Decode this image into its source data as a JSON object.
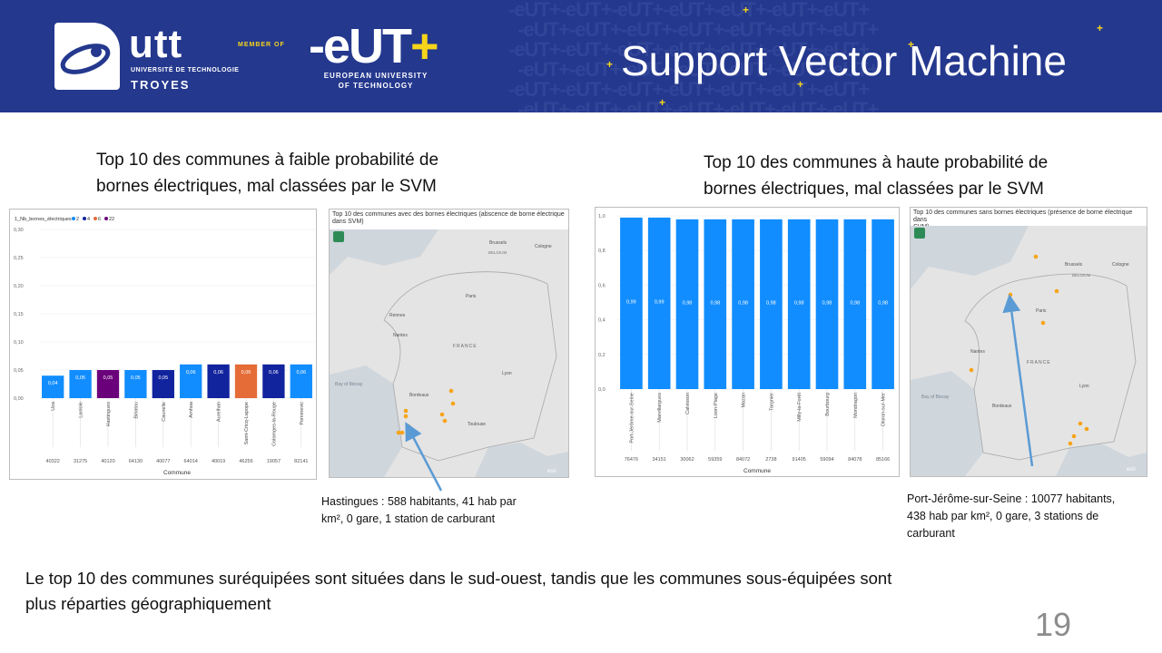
{
  "header": {
    "title": "Support Vector Machine",
    "utt": "utt",
    "utt_sub": "UNIVERSITÉ DE TECHNOLOGIE",
    "utt_city": "TROYES",
    "member": "MEMBER OF",
    "eut_sub_1": "EUROPEAN UNIVERSITY",
    "eut_sub_2": "OF TECHNOLOGY"
  },
  "left": {
    "heading_1": "Top 10 des communes à faible probabilité de",
    "heading_2": "bornes électriques, mal classées par le SVM",
    "map_title_1": "Top 10 des communes avec des bornes électriques (abscence de borne électrique",
    "map_title_2": "dans SVM)",
    "callout_1": "Hastingues : 588 habitants, 41 hab par",
    "callout_2": "km², 0 gare, 1 station de carburant"
  },
  "right": {
    "heading_1": "Top 10 des communes à haute probabilité de",
    "heading_2": "bornes électriques, mal classées par le SVM",
    "map_title_1": "Top 10 des communes sans bornes électriques (présence de borne électrique dans",
    "map_title_2": "SVM)",
    "callout_1": "Port-Jérôme-sur-Seine : 10077 habitants,",
    "callout_2": "438 hab par km², 0 gare, 3 stations de",
    "callout_3": "carburant"
  },
  "conclusion_1": "Le top 10 des communes suréquipées sont situées dans le sud-ouest, tandis que les communes sous-équipées sont",
  "conclusion_2": "plus réparties géographiquement",
  "page_number": "19",
  "map_labels": {
    "france": "FRANCE",
    "paris": "Paris",
    "nantes": "Nantes",
    "bordeaux": "Bordeaux",
    "toulouse": "Toulouse",
    "lyon": "Lyon",
    "rennes": "Rennes",
    "brussels": "Brussels",
    "cologne": "Cologne",
    "belgium": "BELGIUM",
    "bay": "Bay of Biscay",
    "esri": "esri"
  },
  "colors": {
    "banner": "#24388e",
    "accent_yellow": "#f6d51a",
    "bar_blue": "#118dff",
    "dark_blue": "#12239e",
    "purple": "#6b007b",
    "orange": "#e66c37",
    "point_orange": "#f7a415"
  },
  "chart_data": [
    {
      "type": "bar",
      "legend_title": "1_Nb_bornes_électriques",
      "legend": [
        {
          "name": "2",
          "color": "#118dff"
        },
        {
          "name": "4",
          "color": "#12239e"
        },
        {
          "name": "6",
          "color": "#e66c37"
        },
        {
          "name": "22",
          "color": "#6b007b"
        }
      ],
      "xlabel": "Commune",
      "ylim": [
        0,
        0.3
      ],
      "yticks": [
        "0,30",
        "0,25",
        "0,20",
        "0,15",
        "0,10",
        "0,05",
        "0,00"
      ],
      "categories": [
        "Uza",
        "Lanlole",
        "Hastingues",
        "Biriatou",
        "Caunelle",
        "Arnhoa",
        "Aurelhan",
        "Saint-Cricq-Lapope",
        "Colomges-la-Rouge",
        "Pommevic"
      ],
      "values": [
        0.04,
        0.05,
        0.05,
        0.05,
        0.05,
        0.06,
        0.06,
        0.06,
        0.06,
        0.06
      ],
      "labels": [
        "0,04",
        "0,05",
        "0,05",
        "0,05",
        "0,05",
        "0,06",
        "0,06",
        "0,06",
        "0,06",
        "0,06"
      ],
      "colors": [
        "#118dff",
        "#118dff",
        "#6b007b",
        "#118dff",
        "#12239e",
        "#118dff",
        "#12239e",
        "#e66c37",
        "#12239e",
        "#118dff"
      ],
      "codes": [
        "40322",
        "31275",
        "40120",
        "64130",
        "40077",
        "64014",
        "40019",
        "46256",
        "19057",
        "82141"
      ]
    },
    {
      "type": "bar",
      "xlabel": "Commune",
      "ylim": [
        0,
        1.0
      ],
      "yticks": [
        "1,0",
        "0,8",
        "0,6",
        "0,4",
        "0,2",
        "0,0"
      ],
      "categories": [
        "Port-Jérôme-sur-Seine",
        "Marvillargues",
        "Calvisson",
        "Loon-Plage",
        "Mazan",
        "Targnier",
        "Milly-la-Forêt",
        "Bourbourg",
        "Mondragon",
        "Oloron-sur-Mer"
      ],
      "values": [
        0.99,
        0.99,
        0.98,
        0.98,
        0.98,
        0.98,
        0.98,
        0.98,
        0.98,
        0.98
      ],
      "labels": [
        "0,99",
        "0,99",
        "0,98",
        "0,98",
        "0,98",
        "0,98",
        "0,98",
        "0,98",
        "0,98",
        "0,98"
      ],
      "codes": [
        "76476",
        "34151",
        "30062",
        "59359",
        "84072",
        "2738",
        "91405",
        "59094",
        "84078",
        "85166"
      ]
    }
  ]
}
